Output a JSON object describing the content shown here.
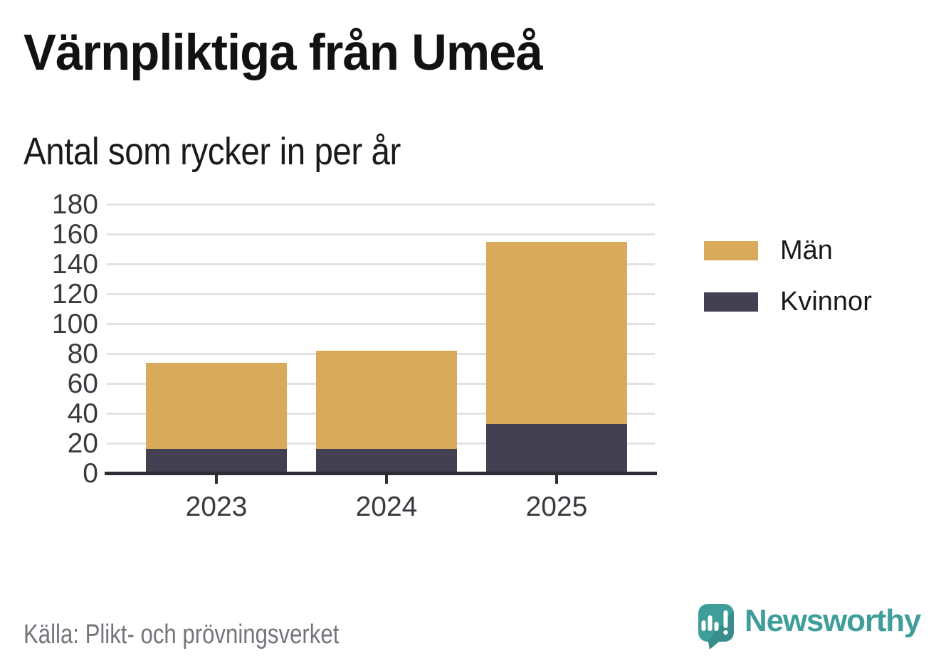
{
  "header": {
    "title": "Värnpliktiga från Umeå",
    "subtitle": "Antal som rycker in per år"
  },
  "chart_data": {
    "type": "bar",
    "stacked": true,
    "title": "Värnpliktiga från Umeå",
    "subtitle": "Antal som rycker in per år",
    "categories": [
      "2023",
      "2024",
      "2025"
    ],
    "series": [
      {
        "name": "Män",
        "color": "#d9aa5b",
        "values": [
          58,
          66,
          122
        ]
      },
      {
        "name": "Kvinnor",
        "color": "#434051",
        "values": [
          16,
          16,
          33
        ]
      }
    ],
    "stack_totals": [
      74,
      82,
      155
    ],
    "ylim": [
      0,
      180
    ],
    "yticks": [
      0,
      20,
      40,
      60,
      80,
      100,
      120,
      140,
      160,
      180
    ],
    "grid": true,
    "legend_position": "right",
    "axis_color": "#2e2d33",
    "grid_color": "#e2e2e2"
  },
  "footer": {
    "source": "Källa: Plikt- och prövningsverket",
    "brand": "Newsworthy",
    "brand_color": "#3f9e9a"
  }
}
